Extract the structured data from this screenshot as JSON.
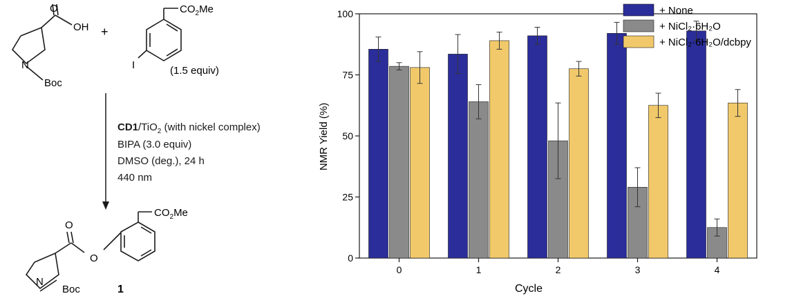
{
  "scheme": {
    "reagent_equiv": "(1.5 equiv)",
    "conditions": {
      "catalyst_bold": "CD1",
      "catalyst_rest": "/TiO",
      "catalyst_sub": "2",
      "catalyst_note": " (with nickel complex)",
      "line2": "BIPA (3.0 equiv)",
      "line3": "DMSO (deg.), 24 h",
      "line4": "440 nm",
      "line4_color": "#3b3fb8"
    },
    "labels": {
      "plus": "+",
      "oh": "OH",
      "boc": "Boc",
      "n": "N",
      "iodo": "I",
      "ester_a": "CO",
      "ester_sub": "2",
      "ester_b": "Me",
      "o": "O",
      "product_number": "1"
    }
  },
  "chart_data": {
    "type": "bar",
    "categories": [
      "0",
      "1",
      "2",
      "3",
      "4"
    ],
    "xlabel": "Cycle",
    "ylabel": "NMR Yield (%)",
    "ylim": [
      0,
      100
    ],
    "yticks": [
      0,
      25,
      50,
      75,
      100
    ],
    "legend_position": "top-right",
    "series": [
      {
        "name": "+ None",
        "color": "#2b2d9a",
        "values": [
          85.5,
          83.5,
          91,
          92,
          93
        ],
        "errors": [
          5,
          8,
          3.5,
          4.5,
          4
        ]
      },
      {
        "name": "+ NiCl₂·6H₂O",
        "color": "#8a8a8a",
        "values": [
          78.5,
          64,
          48,
          29,
          12.5
        ],
        "errors": [
          1.5,
          7,
          15.5,
          8,
          3.5
        ]
      },
      {
        "name": "+ NiCl₂·6H₂O/dcbpy",
        "color": "#f1c96a",
        "values": [
          78,
          89,
          77.5,
          62.5,
          63.5
        ],
        "errors": [
          6.5,
          3.5,
          3,
          5,
          5.5
        ]
      }
    ]
  }
}
